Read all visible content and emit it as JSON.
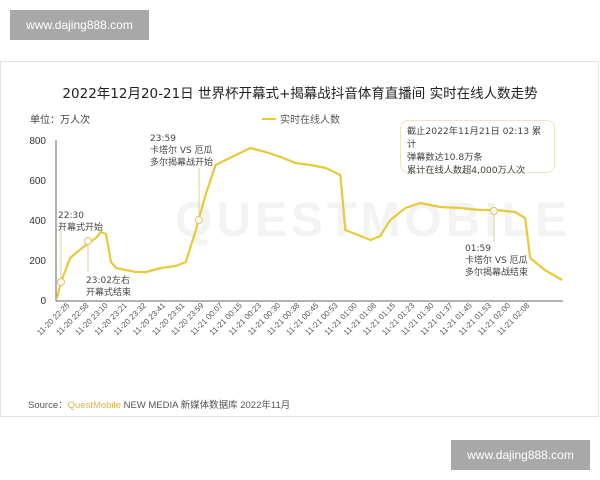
{
  "watermarks": {
    "top": "www.dajing888.com",
    "bottom": "www.dajing888.com"
  },
  "background_watermark": "QUESTMOBILE",
  "chart_data": {
    "type": "line",
    "title": "2022年12月20-21日 世界杯开幕式+揭幕战抖音体育直播间 实时在线人数走势",
    "unit_label": "单位：万人次",
    "xlabel": "",
    "ylabel": "万人次",
    "ylim": [
      0,
      800
    ],
    "yticks": [
      0,
      200,
      400,
      600,
      800
    ],
    "grid": false,
    "legend_position": "top-center",
    "x_tick_labels": [
      "11-20 22:25",
      "11-20 22:58",
      "11-20 23:10",
      "11-20 23:21",
      "11-20 23:32",
      "11-20 23:41",
      "11-20 23:51",
      "11-20 23:59",
      "11-21 00:07",
      "11-21 00:15",
      "11-21 00:23",
      "11-21 00:30",
      "11-21 00:38",
      "11-21 00:45",
      "11-21 00:53",
      "11-21 01:00",
      "11-21 01:08",
      "11-21 01:15",
      "11-21 01:23",
      "11-21 01:30",
      "11-21 01:37",
      "11-21 01:45",
      "11-21 01:53",
      "11-21 02:00",
      "11-21 02:08"
    ],
    "series": [
      {
        "name": "实时在线人数",
        "color": "#e8c93a",
        "points": [
          [
            0.0,
            10
          ],
          [
            0.008,
            90
          ],
          [
            0.026,
            210
          ],
          [
            0.045,
            250
          ],
          [
            0.063,
            285
          ],
          [
            0.077,
            310
          ],
          [
            0.087,
            340
          ],
          [
            0.097,
            330
          ],
          [
            0.107,
            190
          ],
          [
            0.117,
            160
          ],
          [
            0.136,
            150
          ],
          [
            0.156,
            140
          ],
          [
            0.176,
            140
          ],
          [
            0.206,
            160
          ],
          [
            0.235,
            170
          ],
          [
            0.255,
            190
          ],
          [
            0.275,
            350
          ],
          [
            0.294,
            525
          ],
          [
            0.314,
            675
          ],
          [
            0.334,
            700
          ],
          [
            0.354,
            725
          ],
          [
            0.383,
            760
          ],
          [
            0.413,
            740
          ],
          [
            0.443,
            715
          ],
          [
            0.472,
            685
          ],
          [
            0.502,
            675
          ],
          [
            0.532,
            660
          ],
          [
            0.561,
            625
          ],
          [
            0.571,
            350
          ],
          [
            0.591,
            330
          ],
          [
            0.621,
            300
          ],
          [
            0.64,
            320
          ],
          [
            0.66,
            400
          ],
          [
            0.69,
            460
          ],
          [
            0.719,
            485
          ],
          [
            0.759,
            465
          ],
          [
            0.798,
            460
          ],
          [
            0.838,
            450
          ],
          [
            0.867,
            450
          ],
          [
            0.907,
            440
          ],
          [
            0.927,
            410
          ],
          [
            0.937,
            210
          ],
          [
            0.966,
            150
          ],
          [
            1.0,
            100
          ]
        ]
      }
    ],
    "annotations": [
      {
        "time": "22:30",
        "text": "开幕式开始",
        "value": 100
      },
      {
        "time": "23:02左右",
        "text": "开幕式结束",
        "value": 295
      },
      {
        "time": "23:59",
        "text_lines": [
          "卡塔尔 VS 厄瓜",
          "多尔揭幕战开始"
        ],
        "value": 390
      },
      {
        "time": "01:59",
        "text_lines": [
          "卡塔尔 VS 厄瓜",
          "多尔揭幕战结束"
        ],
        "value": 445
      }
    ],
    "note_box": [
      "截止2022年11月21日 02:13 累计",
      "弹幕数达10.8万条",
      "累计在线人数超4,000万人次"
    ]
  },
  "legend": {
    "label": "实时在线人数"
  },
  "source": {
    "prefix": "Source：",
    "brand": "QuestMobile",
    "rest": "NEW MEDIA 新媒体数据库 2022年11月"
  }
}
